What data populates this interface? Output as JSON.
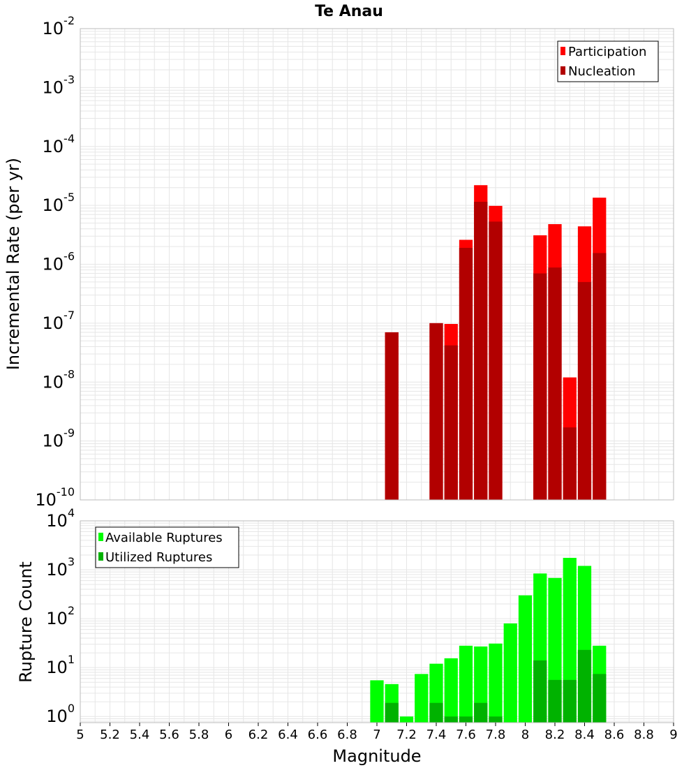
{
  "title": "Te Anau",
  "xlabel": "Magnitude",
  "x_ticks": [
    "5",
    "5.2",
    "5.4",
    "5.6",
    "5.8",
    "6",
    "6.2",
    "6.4",
    "6.6",
    "6.8",
    "7",
    "7.2",
    "7.4",
    "7.6",
    "7.8",
    "8",
    "8.2",
    "8.4",
    "8.6",
    "8.8",
    "9"
  ],
  "colors": {
    "participation": "#ff0000",
    "nucleation": "#b20000",
    "available": "#00ff00",
    "utilized": "#00b200",
    "grid": "#e6e6e6",
    "frame": "#bbbbbb"
  },
  "chart_data": [
    {
      "type": "bar",
      "title": "Te Anau",
      "xlabel": "",
      "ylabel": "Incremental Rate (per yr)",
      "yscale": "log",
      "xlim": [
        5,
        9
      ],
      "ylim": [
        1e-10,
        0.01
      ],
      "y_ticks": [
        {
          "base": "10",
          "exp": "-10"
        },
        {
          "base": "10",
          "exp": "-9"
        },
        {
          "base": "10",
          "exp": "-8"
        },
        {
          "base": "10",
          "exp": "-7"
        },
        {
          "base": "10",
          "exp": "-6"
        },
        {
          "base": "10",
          "exp": "-5"
        },
        {
          "base": "10",
          "exp": "-4"
        },
        {
          "base": "10",
          "exp": "-3"
        },
        {
          "base": "10",
          "exp": "-2"
        }
      ],
      "grid": true,
      "legend_position": "top-right",
      "x": [
        7.1,
        7.4,
        7.5,
        7.6,
        7.7,
        7.8,
        8.1,
        8.2,
        8.3,
        8.4,
        8.5
      ],
      "series": [
        {
          "name": "Participation",
          "values": [
            7e-08,
            1e-07,
            9.7e-08,
            2.6e-06,
            2.2e-05,
            9.8e-06,
            3.1e-06,
            4.8e-06,
            1.2e-08,
            4.4e-06,
            1.35e-05
          ]
        },
        {
          "name": "Nucleation",
          "values": [
            7e-08,
            1e-07,
            4.2e-08,
            1.9e-06,
            1.15e-05,
            5.3e-06,
            7e-07,
            8.8e-07,
            1.7e-09,
            5e-07,
            1.55e-06
          ]
        }
      ]
    },
    {
      "type": "bar",
      "xlabel": "Magnitude",
      "ylabel": "Rupture Count",
      "yscale": "log",
      "xlim": [
        5,
        9
      ],
      "ylim": [
        0.75,
        10000
      ],
      "y_ticks": [
        {
          "base": "10",
          "exp": "0"
        },
        {
          "base": "10",
          "exp": "1"
        },
        {
          "base": "10",
          "exp": "2"
        },
        {
          "base": "10",
          "exp": "3"
        },
        {
          "base": "10",
          "exp": "4"
        }
      ],
      "grid": true,
      "legend_position": "top-left",
      "series": [
        {
          "name": "Available Ruptures",
          "x": [
            7.0,
            7.1,
            7.2,
            7.3,
            7.4,
            7.5,
            7.6,
            7.7,
            7.8,
            7.9,
            8.0,
            8.1,
            8.2,
            8.3,
            8.4,
            8.5
          ],
          "values": [
            5.5,
            4.6,
            1,
            7.4,
            12,
            15.5,
            28,
            27,
            31,
            80,
            300,
            840,
            680,
            1750,
            1200,
            28
          ]
        },
        {
          "name": "Utilized Ruptures",
          "x": [
            7.1,
            7.4,
            7.5,
            7.6,
            7.7,
            7.8,
            8.1,
            8.2,
            8.3,
            8.4,
            8.5
          ],
          "values": [
            1.9,
            1.9,
            1,
            1,
            1.9,
            1,
            14,
            5.6,
            5.6,
            23,
            7.4
          ]
        }
      ]
    }
  ]
}
